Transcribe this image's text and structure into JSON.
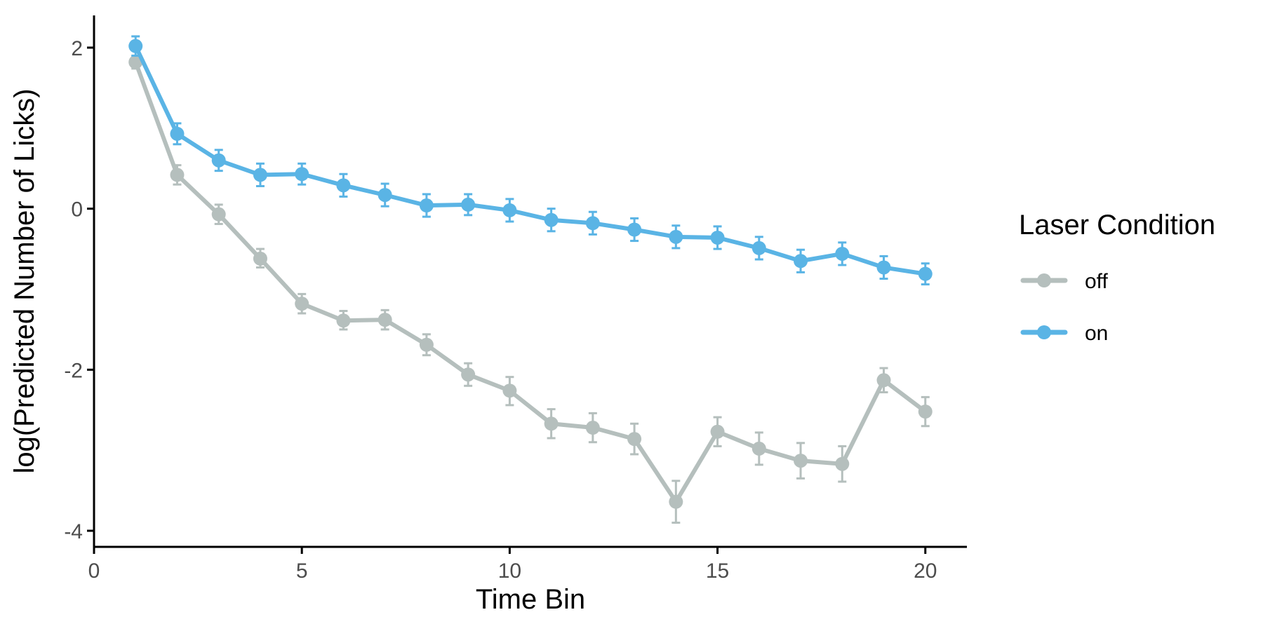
{
  "chart_data": {
    "type": "line",
    "title": "",
    "xlabel": "Time Bin",
    "ylabel": "log(Predicted Number of Licks)",
    "xlim": [
      0,
      21
    ],
    "ylim": [
      -4.2,
      2.4
    ],
    "x_ticks": [
      0,
      5,
      10,
      15,
      20
    ],
    "x_tick_labels": [
      "0",
      "5",
      "10",
      "15",
      "20"
    ],
    "y_ticks": [
      2,
      0,
      -2,
      -4
    ],
    "y_tick_labels": [
      "2",
      "0",
      "-2",
      "-4"
    ],
    "grid": false,
    "legend": {
      "title": "Laser Condition",
      "position": "right"
    },
    "x": [
      1,
      2,
      3,
      4,
      5,
      6,
      7,
      8,
      9,
      10,
      11,
      12,
      13,
      14,
      15,
      16,
      17,
      18,
      19,
      20
    ],
    "series": [
      {
        "name": "off",
        "color": "#b5bfbd",
        "values": [
          1.82,
          0.42,
          -0.07,
          -0.62,
          -1.18,
          -1.39,
          -1.38,
          -1.69,
          -2.06,
          -2.26,
          -2.67,
          -2.72,
          -2.86,
          -3.64,
          -2.77,
          -2.98,
          -3.13,
          -3.17,
          -2.13,
          -2.52
        ],
        "lower": [
          1.74,
          0.3,
          -0.19,
          -0.73,
          -1.3,
          -1.5,
          -1.5,
          -1.82,
          -2.2,
          -2.44,
          -2.85,
          -2.9,
          -3.05,
          -3.9,
          -2.95,
          -3.18,
          -3.35,
          -3.39,
          -2.28,
          -2.7
        ],
        "upper": [
          1.9,
          0.54,
          0.05,
          -0.5,
          -1.06,
          -1.27,
          -1.26,
          -1.56,
          -1.92,
          -2.09,
          -2.49,
          -2.54,
          -2.67,
          -3.38,
          -2.59,
          -2.78,
          -2.91,
          -2.95,
          -1.98,
          -2.34
        ]
      },
      {
        "name": "on",
        "color": "#5ab4e5",
        "values": [
          2.02,
          0.93,
          0.6,
          0.42,
          0.43,
          0.29,
          0.17,
          0.04,
          0.05,
          -0.02,
          -0.14,
          -0.18,
          -0.26,
          -0.35,
          -0.36,
          -0.49,
          -0.65,
          -0.56,
          -0.73,
          -0.81
        ],
        "lower": [
          1.9,
          0.8,
          0.47,
          0.28,
          0.3,
          0.15,
          0.03,
          -0.1,
          -0.08,
          -0.16,
          -0.28,
          -0.32,
          -0.4,
          -0.49,
          -0.5,
          -0.63,
          -0.79,
          -0.7,
          -0.87,
          -0.94
        ],
        "upper": [
          2.14,
          1.06,
          0.73,
          0.56,
          0.56,
          0.43,
          0.31,
          0.18,
          0.18,
          0.12,
          0.0,
          -0.04,
          -0.12,
          -0.21,
          -0.22,
          -0.35,
          -0.51,
          -0.42,
          -0.59,
          -0.68
        ]
      }
    ]
  }
}
